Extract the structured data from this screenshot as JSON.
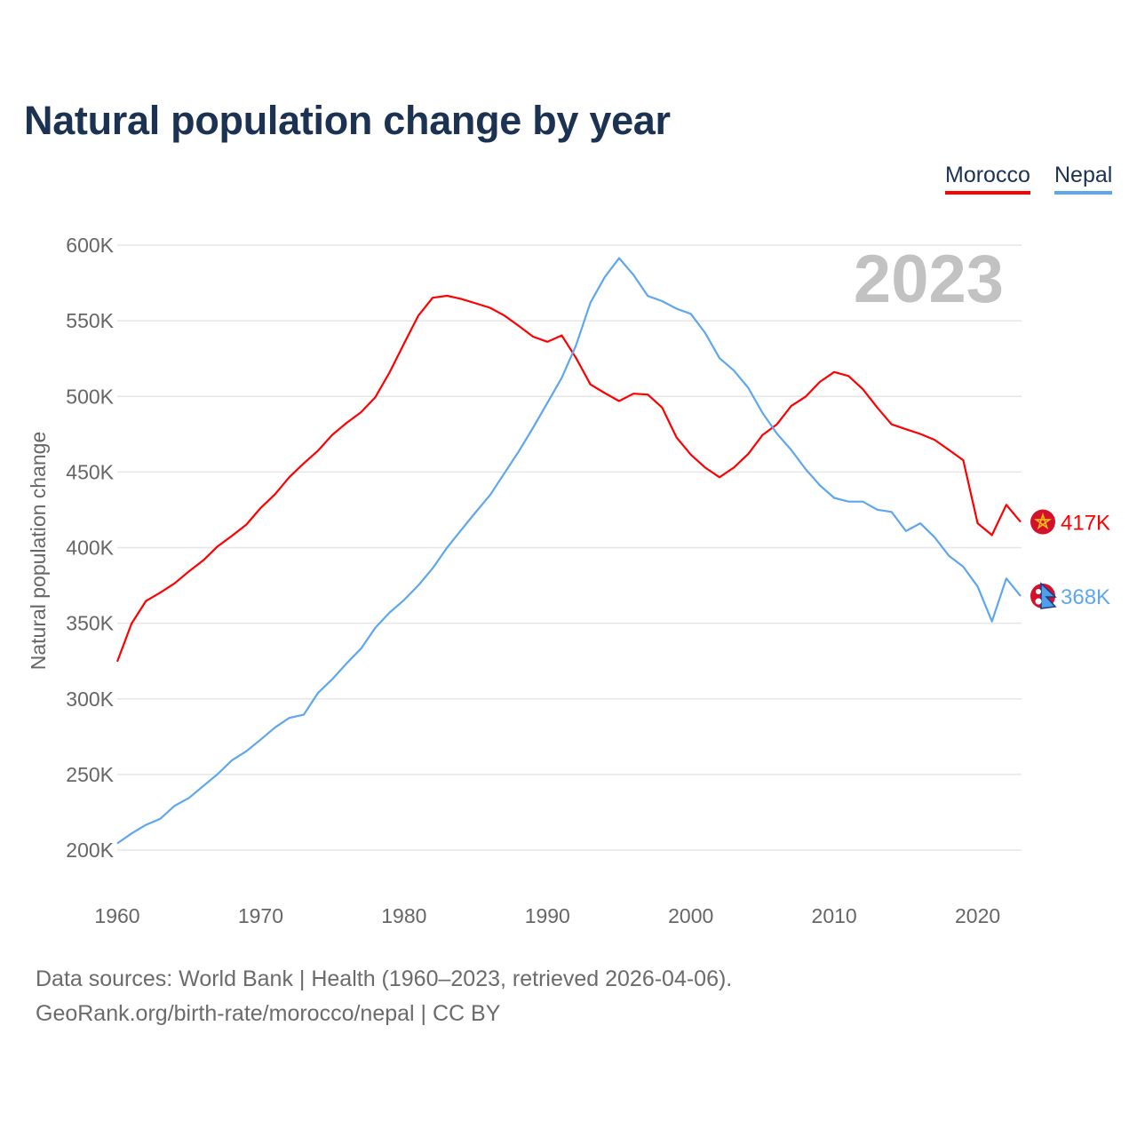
{
  "chart_data": {
    "type": "line",
    "title": "Natural population change by year",
    "xlabel": "",
    "ylabel": "Natural population change",
    "xlim": [
      1960,
      2023
    ],
    "ylim": [
      200000,
      600000
    ],
    "x_ticks": [
      1960,
      1970,
      1980,
      1990,
      2000,
      2010,
      2020
    ],
    "x_tick_labels": [
      "1960",
      "1970",
      "1980",
      "1990",
      "2000",
      "2010",
      "2020"
    ],
    "y_ticks": [
      200000,
      250000,
      300000,
      350000,
      400000,
      450000,
      500000,
      550000,
      600000
    ],
    "y_tick_labels": [
      "200K",
      "250K",
      "300K",
      "350K",
      "400K",
      "450K",
      "500K",
      "550K",
      "600K"
    ],
    "grid": true,
    "legend_position": "top-right",
    "year_watermark": "2023",
    "x": [
      1960,
      1961,
      1962,
      1963,
      1964,
      1965,
      1966,
      1967,
      1968,
      1969,
      1970,
      1971,
      1972,
      1973,
      1974,
      1975,
      1976,
      1977,
      1978,
      1979,
      1980,
      1981,
      1982,
      1983,
      1984,
      1985,
      1986,
      1987,
      1988,
      1989,
      1990,
      1991,
      1992,
      1993,
      1994,
      1995,
      1996,
      1997,
      1998,
      1999,
      2000,
      2001,
      2002,
      2003,
      2004,
      2005,
      2006,
      2007,
      2008,
      2009,
      2010,
      2011,
      2012,
      2013,
      2014,
      2015,
      2016,
      2017,
      2018,
      2019,
      2020,
      2021,
      2022,
      2023
    ],
    "series": [
      {
        "name": "Morocco",
        "color": "#ff0000",
        "end_label": "417K",
        "flag_icon": "morocco-flag",
        "values": [
          324600,
          349800,
          364700,
          370200,
          376400,
          384300,
          391600,
          400800,
          407800,
          415200,
          426200,
          435300,
          446600,
          455700,
          464100,
          474600,
          482500,
          489500,
          499500,
          516000,
          535000,
          553400,
          565200,
          566500,
          564400,
          561500,
          558600,
          553400,
          546600,
          539500,
          536100,
          540300,
          525300,
          507900,
          502200,
          496900,
          501800,
          501200,
          492600,
          472900,
          461500,
          452900,
          446500,
          452900,
          461900,
          474400,
          481500,
          493600,
          499800,
          509600,
          516100,
          513500,
          504700,
          492600,
          481500,
          478300,
          475200,
          471300,
          464600,
          457800,
          416100,
          408300,
          428300,
          417000
        ]
      },
      {
        "name": "Nepal",
        "color": "#5ea7ee",
        "end_label": "368K",
        "flag_icon": "nepal-flag",
        "values": [
          204400,
          211000,
          216700,
          220700,
          229300,
          234500,
          242400,
          250200,
          259400,
          265400,
          273000,
          281100,
          287400,
          289500,
          303900,
          313000,
          323500,
          333200,
          347100,
          357100,
          365400,
          375100,
          386400,
          400000,
          411800,
          423500,
          434800,
          449200,
          463600,
          479300,
          495800,
          512300,
          534000,
          562000,
          579000,
          591400,
          580400,
          566400,
          563000,
          558000,
          554600,
          541900,
          525300,
          517100,
          505700,
          489100,
          475400,
          464600,
          451900,
          441200,
          432900,
          430400,
          430400,
          425100,
          423600,
          410900,
          416100,
          406900,
          394600,
          387400,
          374300,
          351200,
          379600,
          368000
        ]
      }
    ]
  },
  "legend": {
    "morocco": "Morocco",
    "nepal": "Nepal"
  },
  "footer": {
    "line1": "Data sources: World Bank | Health (1960–2023, retrieved 2026-04-06).",
    "line2": "GeoRank.org/birth-rate/morocco/nepal | CC BY"
  }
}
